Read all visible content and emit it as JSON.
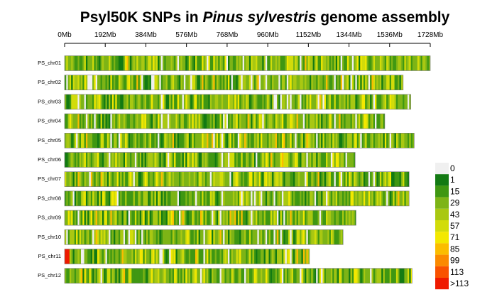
{
  "chart_data": {
    "type": "heatmap",
    "title_parts": [
      {
        "text": "Psyl50K SNPs in ",
        "italic": false
      },
      {
        "text": "Pinus sylvestris",
        "italic": true
      },
      {
        "text": " genome assembly",
        "italic": false
      }
    ],
    "x_ticks": [
      {
        "value": 0,
        "label": "0Mb"
      },
      {
        "value": 192,
        "label": "192Mb"
      },
      {
        "value": 384,
        "label": "384Mb"
      },
      {
        "value": 576,
        "label": "576Mb"
      },
      {
        "value": 768,
        "label": "768Mb"
      },
      {
        "value": 960,
        "label": "960Mb"
      },
      {
        "value": 1152,
        "label": "1152Mb"
      },
      {
        "value": 1344,
        "label": "1344Mb"
      },
      {
        "value": 1536,
        "label": "1536Mb"
      },
      {
        "value": 1728,
        "label": "1728Mb"
      }
    ],
    "x_range_mb": [
      0,
      1728
    ],
    "chromosomes": [
      {
        "name": "PS_chr01",
        "length_mb": 1728
      },
      {
        "name": "PS_chr02",
        "length_mb": 1600
      },
      {
        "name": "PS_chr03",
        "length_mb": 1636
      },
      {
        "name": "PS_chr04",
        "length_mb": 1513
      },
      {
        "name": "PS_chr05",
        "length_mb": 1652
      },
      {
        "name": "PS_chr06",
        "length_mb": 1373
      },
      {
        "name": "PS_chr07",
        "length_mb": 1628
      },
      {
        "name": "PS_chr08",
        "length_mb": 1628
      },
      {
        "name": "PS_chr09",
        "length_mb": 1377
      },
      {
        "name": "PS_chr10",
        "length_mb": 1316
      },
      {
        "name": "PS_chr11",
        "length_mb": 1157
      },
      {
        "name": "PS_chr12",
        "length_mb": 1642
      }
    ],
    "legend": {
      "title": "",
      "bins": [
        {
          "label": "0",
          "color": "#f0f0f0"
        },
        {
          "label": "1",
          "color": "#137a13"
        },
        {
          "label": "15",
          "color": "#3f9712"
        },
        {
          "label": "29",
          "color": "#7db416"
        },
        {
          "label": "43",
          "color": "#a9c812"
        },
        {
          "label": "57",
          "color": "#d2dc0a"
        },
        {
          "label": "71",
          "color": "#f3e800"
        },
        {
          "label": "85",
          "color": "#fbbd00"
        },
        {
          "label": "99",
          "color": "#fb8a00"
        },
        {
          "label": "113",
          "color": "#f95200"
        },
        {
          "label": ">113",
          "color": "#ef1a00"
        }
      ]
    }
  }
}
